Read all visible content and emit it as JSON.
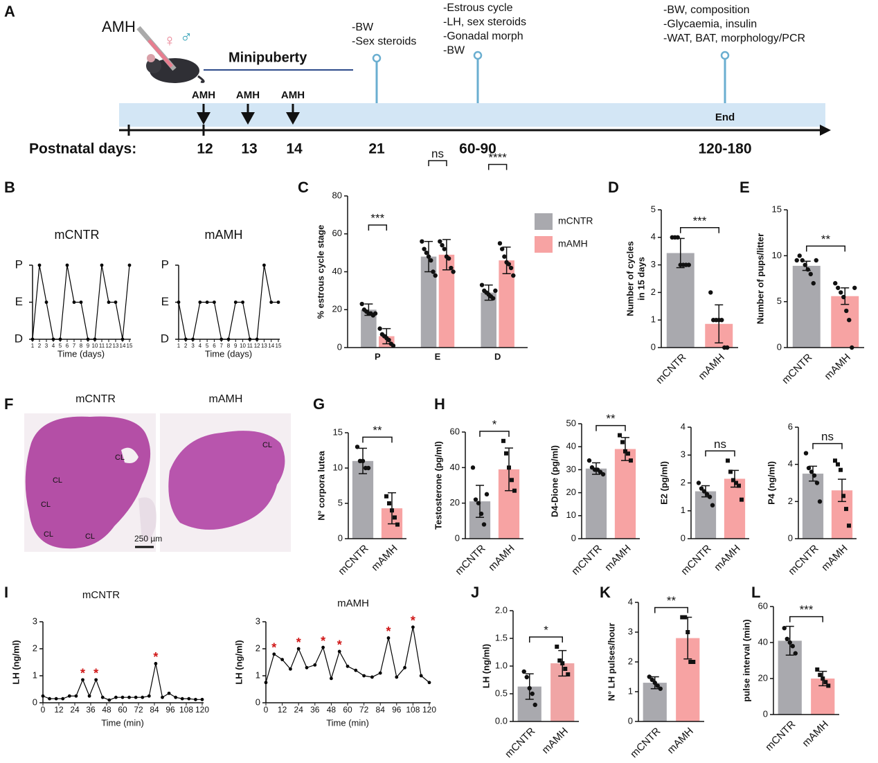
{
  "timeline": {
    "panel": "A",
    "drug": "AMH",
    "symbols": [
      "♀",
      "♂"
    ],
    "phase": "Minipuberty",
    "axis_label": "Postnatal days:",
    "end": "End",
    "injections": [
      {
        "label": "AMH",
        "day": "12"
      },
      {
        "label": "AMH",
        "day": "13"
      },
      {
        "label": "AMH",
        "day": "14"
      }
    ],
    "milestones": [
      {
        "day": "21",
        "notes": [
          "-BW",
          "-Sex steroids"
        ]
      },
      {
        "day": "60-90",
        "notes": [
          "-Estrous cycle",
          "-LH, sex steroids",
          "-Gonadal morph",
          "-BW"
        ]
      },
      {
        "day": "120-180",
        "notes": [
          "-BW, composition",
          "-Glycaemia, insulin",
          "-WAT, BAT, morphology/PCR"
        ]
      }
    ]
  },
  "histology": {
    "panel": "F",
    "images": [
      {
        "title": "mCNTR",
        "annotations": [
          "CL",
          "CL",
          "CL",
          "CL",
          "CL"
        ]
      },
      {
        "title": "mAMH",
        "annotations": [
          "CL"
        ]
      }
    ],
    "scale_bar": "250 µm"
  },
  "chart_data": [
    {
      "panel": "B",
      "type": "line",
      "title": "mCNTR",
      "xlabel": "Time (days)",
      "color": "#000000",
      "x": [
        1,
        2,
        3,
        4,
        5,
        6,
        7,
        8,
        9,
        10,
        11,
        12,
        13,
        14,
        15
      ],
      "values": [
        0,
        2,
        1,
        0,
        0,
        2,
        1,
        1,
        0,
        0,
        2,
        1,
        1,
        0,
        2
      ],
      "xlim": [
        1,
        15
      ],
      "xticks": [
        1,
        2,
        3,
        4,
        5,
        6,
        7,
        8,
        9,
        10,
        11,
        12,
        13,
        14,
        15
      ],
      "ylim": [
        0,
        2
      ],
      "yticks": [
        {
          "value": 0,
          "label": "D"
        },
        {
          "value": 1,
          "label": "E"
        },
        {
          "value": 2,
          "label": "P"
        }
      ]
    },
    {
      "type": "line",
      "title": "mAMH",
      "xlabel": "Time (days)",
      "color": "#000000",
      "x": [
        1,
        2,
        3,
        4,
        5,
        6,
        7,
        8,
        9,
        10,
        11,
        12,
        13,
        14,
        15
      ],
      "values": [
        1,
        0,
        0,
        1,
        1,
        1,
        0,
        0,
        1,
        1,
        0,
        0,
        2,
        1,
        1
      ],
      "xlim": [
        1,
        15
      ],
      "xticks": [
        1,
        2,
        3,
        4,
        5,
        6,
        7,
        8,
        9,
        10,
        11,
        12,
        13,
        14,
        15
      ],
      "ylim": [
        0,
        2
      ],
      "yticks": [
        {
          "value": 0,
          "label": "D"
        },
        {
          "value": 1,
          "label": "E"
        },
        {
          "value": 2,
          "label": "P"
        }
      ]
    },
    {
      "panel": "C",
      "type": "grouped_bar",
      "ylabel": "% estrous cycle stage",
      "categories": [
        "P",
        "E",
        "D"
      ],
      "series": [
        {
          "name": "mCNTR",
          "color": "#a9a9ae",
          "marker": "circle",
          "values": [
            20,
            48,
            29
          ],
          "errors": [
            3,
            8,
            4
          ],
          "points": [
            [
              23,
              20,
              19,
              18,
              18,
              17,
              18
            ],
            [
              56,
              52,
              50,
              48,
              46,
              40,
              38
            ],
            [
              33,
              30,
              29,
              28,
              27,
              26,
              30
            ]
          ]
        },
        {
          "name": "mAMH",
          "color": "#f7a3a3",
          "marker": "circle",
          "values": [
            6,
            49,
            46
          ],
          "errors": [
            4,
            8,
            7
          ],
          "points": [
            [
              10,
              7,
              6,
              5,
              4,
              2,
              1
            ],
            [
              56,
              54,
              52,
              48,
              47,
              42,
              40
            ],
            [
              55,
              52,
              48,
              45,
              44,
              42,
              38
            ]
          ]
        }
      ],
      "significance": [
        "***",
        "ns",
        "****"
      ],
      "ylim": [
        0,
        80
      ],
      "yticks": [
        0,
        20,
        40,
        60,
        80
      ]
    },
    {
      "panel": "D",
      "type": "bar",
      "ylabel": [
        "Number of cycles",
        "in 15 days"
      ],
      "categories": [
        "mCNTR",
        "mAMH"
      ],
      "values": [
        3.43,
        0.86
      ],
      "errors": [
        0.53,
        0.69
      ],
      "points": [
        [
          4,
          4,
          4,
          3,
          3,
          3,
          3
        ],
        [
          2,
          1,
          1,
          1,
          1,
          0,
          0
        ]
      ],
      "colors": [
        "#a9a9ae",
        "#f7a3a3"
      ],
      "markers": [
        "circle",
        "circle"
      ],
      "significance": "***",
      "ylim": [
        0,
        5
      ],
      "yticks": [
        0,
        1,
        2,
        3,
        4,
        5
      ]
    },
    {
      "panel": "E",
      "type": "bar",
      "ylabel": "Number of pups/litter",
      "categories": [
        "mCNTR",
        "mAMH"
      ],
      "values": [
        8.9,
        5.6
      ],
      "errors": [
        0.5,
        0.9
      ],
      "points": [
        [
          9.5,
          10,
          9.5,
          9,
          8.5,
          8,
          7,
          9.5
        ],
        [
          7,
          6.5,
          6,
          5.5,
          4,
          3,
          0,
          6.5
        ]
      ],
      "colors": [
        "#a9a9ae",
        "#f7a3a3"
      ],
      "markers": [
        "circle",
        "circle"
      ],
      "significance": "**",
      "ylim": [
        0,
        15
      ],
      "yticks": [
        0,
        5,
        10,
        15
      ]
    },
    {
      "panel": "G",
      "type": "bar",
      "ylabel": "N° corpora lutea",
      "categories": [
        "mCNTR",
        "mAMH"
      ],
      "values": [
        11,
        4.3
      ],
      "errors": [
        1.8,
        2.2
      ],
      "points": [
        [
          13,
          11,
          11,
          10,
          10
        ],
        [
          6,
          5,
          4,
          3,
          2
        ]
      ],
      "colors": [
        "#a9a9ae",
        "#f7a3a3"
      ],
      "markers": [
        "circle",
        "square"
      ],
      "significance": "**",
      "ylim": [
        0,
        15
      ],
      "yticks": [
        0,
        5,
        10,
        15
      ]
    },
    {
      "panel": "H",
      "type": "bar",
      "ylabel": "Testosterone (pg/ml)",
      "categories": [
        "mCNTR",
        "mAMH"
      ],
      "values": [
        21,
        39
      ],
      "errors": [
        9,
        12
      ],
      "points": [
        [
          40,
          22,
          20,
          14,
          8,
          25
        ],
        [
          55,
          48,
          40,
          33,
          27
        ]
      ],
      "colors": [
        "#a9a9ae",
        "#f7a3a3"
      ],
      "markers": [
        "circle",
        "square"
      ],
      "significance": "*",
      "ylim": [
        0,
        60
      ],
      "yticks": [
        0,
        20,
        40,
        60
      ]
    },
    {
      "type": "bar",
      "ylabel": "D4-Dione (pg/ml)",
      "categories": [
        "mCNTR",
        "mAMH"
      ],
      "values": [
        30.5,
        39
      ],
      "errors": [
        2.5,
        5
      ],
      "points": [
        [
          34,
          31,
          30,
          30,
          29,
          28
        ],
        [
          45,
          42,
          38,
          37,
          34
        ]
      ],
      "colors": [
        "#a9a9ae",
        "#f7a3a3"
      ],
      "markers": [
        "circle",
        "square"
      ],
      "significance": "**",
      "ylim": [
        0,
        50
      ],
      "yticks": [
        0,
        10,
        20,
        30,
        40,
        50
      ]
    },
    {
      "type": "bar",
      "ylabel": "E2 (pg/ml)",
      "categories": [
        "mCNTR",
        "mAMH"
      ],
      "values": [
        1.7,
        2.15
      ],
      "errors": [
        0.2,
        0.3
      ],
      "points": [
        [
          2.0,
          1.8,
          1.7,
          1.6,
          1.5,
          1.2
        ],
        [
          2.8,
          2.4,
          2.1,
          2.0,
          1.9,
          1.4
        ]
      ],
      "colors": [
        "#a9a9ae",
        "#f7a3a3"
      ],
      "markers": [
        "circle",
        "square"
      ],
      "significance": "ns",
      "ylim": [
        0,
        4
      ],
      "yticks": [
        0,
        1,
        2,
        3,
        4
      ]
    },
    {
      "type": "bar",
      "ylabel": "P4 (ng/ml)",
      "categories": [
        "mCNTR",
        "mAMH"
      ],
      "values": [
        3.5,
        2.6
      ],
      "errors": [
        0.4,
        0.6
      ],
      "points": [
        [
          4.6,
          3.8,
          3.6,
          3.4,
          3.0,
          2.0
        ],
        [
          4.2,
          4.0,
          3.7,
          2.3,
          1.6,
          0.7
        ]
      ],
      "colors": [
        "#a9a9ae",
        "#f7a3a3"
      ],
      "markers": [
        "circle",
        "square"
      ],
      "significance": "ns",
      "ylim": [
        0,
        6
      ],
      "yticks": [
        0,
        2,
        4,
        6
      ]
    },
    {
      "panel": "I",
      "type": "line",
      "title": "mCNTR",
      "xlabel": "Time (min)",
      "ylabel": "LH (ng/ml)",
      "color": "#000000",
      "x": [
        0,
        5,
        10,
        15,
        20,
        25,
        30,
        35,
        40,
        45,
        50,
        55,
        60,
        65,
        70,
        75,
        80,
        85,
        90,
        95,
        100,
        105,
        110,
        115,
        120
      ],
      "values": [
        0.25,
        0.15,
        0.15,
        0.15,
        0.25,
        0.25,
        0.85,
        0.25,
        0.85,
        0.2,
        0.1,
        0.2,
        0.2,
        0.2,
        0.2,
        0.2,
        0.25,
        1.45,
        0.2,
        0.35,
        0.2,
        0.15,
        0.15,
        0.12,
        0.12
      ],
      "annotations": [
        null,
        null,
        null,
        null,
        null,
        null,
        "*",
        null,
        "*",
        null,
        null,
        null,
        null,
        null,
        null,
        null,
        null,
        "*",
        null,
        null,
        null,
        null,
        null,
        null,
        null
      ],
      "xlim": [
        0,
        120
      ],
      "xticks": [
        0,
        12,
        24,
        36,
        48,
        60,
        72,
        84,
        96,
        108,
        120
      ],
      "ylim": [
        0,
        3
      ],
      "yticks": [
        0,
        1,
        2,
        3
      ]
    },
    {
      "type": "line",
      "title": "mAMH",
      "xlabel": "Time (min)",
      "ylabel": "LH (ng/ml)",
      "color": "#000000",
      "x": [
        0,
        6,
        12,
        18,
        24,
        30,
        36,
        42,
        48,
        54,
        60,
        66,
        72,
        78,
        84,
        90,
        96,
        102,
        108,
        114,
        120
      ],
      "values": [
        0.75,
        1.8,
        1.6,
        1.25,
        2.0,
        1.3,
        1.4,
        2.05,
        0.9,
        1.9,
        1.35,
        1.2,
        1.0,
        0.95,
        1.1,
        2.4,
        0.95,
        1.3,
        2.8,
        1.0,
        0.75
      ],
      "annotations": [
        null,
        "*",
        null,
        null,
        "*",
        null,
        null,
        "*",
        null,
        "*",
        null,
        null,
        null,
        null,
        null,
        "*",
        null,
        null,
        "*",
        null,
        null
      ],
      "xlim": [
        0,
        120
      ],
      "xticks": [
        0,
        12,
        24,
        36,
        48,
        60,
        72,
        84,
        96,
        108,
        120
      ],
      "ylim": [
        0,
        3
      ],
      "yticks": [
        0,
        1,
        2,
        3
      ]
    },
    {
      "panel": "J",
      "type": "bar",
      "ylabel": "LH (ng/ml)",
      "categories": [
        "mCNTR",
        "mAMH"
      ],
      "values": [
        0.63,
        1.05
      ],
      "errors": [
        0.23,
        0.23
      ],
      "points": [
        [
          0.9,
          0.8,
          0.6,
          0.5,
          0.3
        ],
        [
          1.35,
          1.1,
          1.05,
          0.95,
          0.85
        ]
      ],
      "colors": [
        "#a9a9ae",
        "#f0a5a5"
      ],
      "markers": [
        "circle",
        "square"
      ],
      "significance": "*",
      "ylim": [
        0,
        2
      ],
      "yticks": [
        {
          "value": 0,
          "label": "0.0"
        },
        0.5,
        {
          "value": 1,
          "label": "1.0"
        },
        1.5,
        {
          "value": 2,
          "label": "2.0"
        }
      ]
    },
    {
      "panel": "K",
      "type": "bar",
      "ylabel": "N° LH pulses/hour",
      "categories": [
        "mCNTR",
        "mAMH"
      ],
      "values": [
        1.3,
        2.8
      ],
      "errors": [
        0.2,
        0.7
      ],
      "points": [
        [
          1.5,
          1.4,
          1.3,
          1.2,
          1.1
        ],
        [
          3.5,
          3.5,
          3.0,
          2.0,
          2.0
        ]
      ],
      "colors": [
        "#a9a9ae",
        "#f7a3a3"
      ],
      "markers": [
        "circle",
        "square"
      ],
      "significance": "**",
      "ylim": [
        0,
        4
      ],
      "yticks": [
        0,
        1,
        2,
        3,
        4
      ]
    },
    {
      "panel": "L",
      "type": "bar",
      "ylabel": "pulse interval (min)",
      "categories": [
        "mCNTR",
        "mAMH"
      ],
      "values": [
        41,
        20
      ],
      "errors": [
        8,
        4
      ],
      "points": [
        [
          48,
          42,
          40,
          38,
          34
        ],
        [
          25,
          22,
          20,
          18,
          16
        ]
      ],
      "colors": [
        "#a9a9ae",
        "#f7a3a3"
      ],
      "markers": [
        "circle",
        "square"
      ],
      "significance": "***",
      "ylim": [
        0,
        60
      ],
      "yticks": [
        0,
        20,
        40,
        60
      ]
    }
  ]
}
